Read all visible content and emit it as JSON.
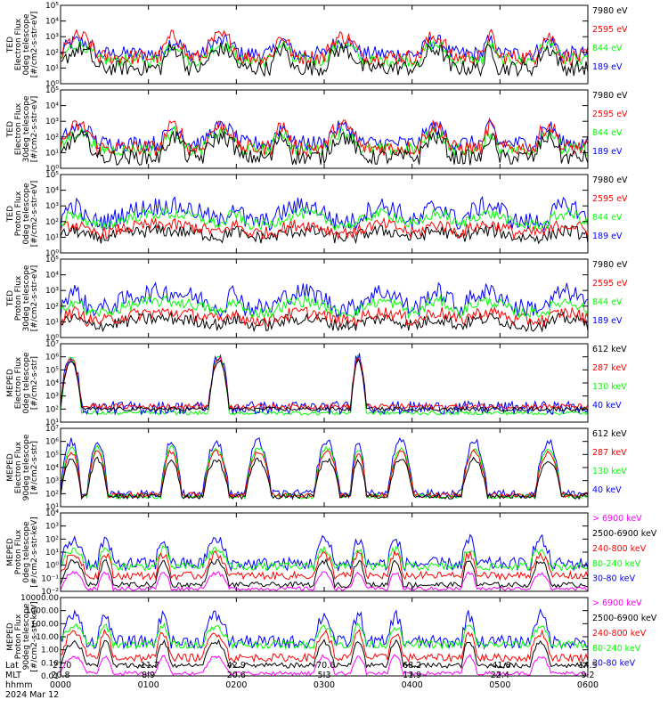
{
  "chart_data": {
    "type": "line",
    "date_label": "2024 Mar 12",
    "x_rows": {
      "labels": [
        "Lat",
        "MLT",
        "hhmm"
      ],
      "columns": [
        {
          "lat": "-21.0",
          "mlt": "20.8",
          "hhmm": "0000"
        },
        {
          "lat": "-11.7",
          "mlt": "8.9",
          "hhmm": "0100"
        },
        {
          "lat": "42.9",
          "mlt": "20.6",
          "hhmm": "0200"
        },
        {
          "lat": "-70.6",
          "mlt": "5.3",
          "hhmm": "0300"
        },
        {
          "lat": "68.2",
          "mlt": "11.9",
          "hhmm": "0400"
        },
        {
          "lat": "-41.8",
          "mlt": "22.4",
          "hhmm": "0500"
        },
        {
          "lat": "14.5",
          "mlt": "9.2",
          "hhmm": "0600"
        }
      ]
    },
    "colors": {
      "c0": "#0000ff",
      "c1": "#00ff00",
      "c2": "#ff0000",
      "c3": "#000000",
      "c4": "#ff00ff"
    },
    "panels": [
      {
        "ylabel": [
          "TED",
          "Electron Flux",
          "0deg telescope",
          "[#/cm2-s-str-eV]"
        ],
        "yscale": "log",
        "ymin": 0,
        "ymax": 5,
        "ticks": [
          {
            "t": "10⁰",
            "e": 0
          },
          {
            "t": "10¹",
            "e": 1
          },
          {
            "t": "10²",
            "e": 2
          },
          {
            "t": "10³",
            "e": 3
          },
          {
            "t": "10⁴",
            "e": 4
          },
          {
            "t": "10⁵",
            "e": 5
          }
        ],
        "legend": [
          {
            "text": "7980 eV",
            "color": "c3"
          },
          {
            "text": "2595 eV",
            "color": "c2"
          },
          {
            "text": "844 eV",
            "color": "c1"
          },
          {
            "text": "189 eV",
            "color": "c0"
          }
        ],
        "series": [
          {
            "color": "c0",
            "profile": "ted-e",
            "base": 1.9,
            "peak": 2.7,
            "noise": 0.5
          },
          {
            "color": "c1",
            "profile": "ted-e",
            "base": 1.5,
            "peak": 2.5,
            "noise": 0.4
          },
          {
            "color": "c2",
            "profile": "ted-e",
            "base": 1.7,
            "peak": 3.0,
            "noise": 0.5
          },
          {
            "color": "c3",
            "profile": "ted-e",
            "base": 1.0,
            "peak": 2.2,
            "noise": 0.5
          }
        ]
      },
      {
        "ylabel": [
          "TED",
          "Electron Flux",
          "30deg telescope",
          "[#/cm2-s-str-eV]"
        ],
        "yscale": "log",
        "ymin": 0,
        "ymax": 5,
        "ticks": [
          {
            "t": "10⁰",
            "e": 0
          },
          {
            "t": "10¹",
            "e": 1
          },
          {
            "t": "10²",
            "e": 2
          },
          {
            "t": "10³",
            "e": 3
          },
          {
            "t": "10⁴",
            "e": 4
          },
          {
            "t": "10⁵",
            "e": 5
          }
        ],
        "legend": [
          {
            "text": "7980 eV",
            "color": "c3"
          },
          {
            "text": "2595 eV",
            "color": "c2"
          },
          {
            "text": "844 eV",
            "color": "c1"
          },
          {
            "text": "189 eV",
            "color": "c0"
          }
        ],
        "series": [
          {
            "color": "c0",
            "profile": "ted-e",
            "base": 1.6,
            "peak": 2.6,
            "noise": 0.5
          },
          {
            "color": "c1",
            "profile": "ted-e",
            "base": 1.2,
            "peak": 2.3,
            "noise": 0.4
          },
          {
            "color": "c2",
            "profile": "ted-e",
            "base": 1.3,
            "peak": 2.7,
            "noise": 0.5
          },
          {
            "color": "c3",
            "profile": "ted-e",
            "base": 0.7,
            "peak": 2.0,
            "noise": 0.5
          }
        ]
      },
      {
        "ylabel": [
          "TED",
          "Proton Flux",
          "0deg telescope",
          "[#/cm2-s-str-eV]"
        ],
        "yscale": "log",
        "ymin": 0,
        "ymax": 5,
        "ticks": [
          {
            "t": "10⁰",
            "e": 0
          },
          {
            "t": "10¹",
            "e": 1
          },
          {
            "t": "10²",
            "e": 2
          },
          {
            "t": "10³",
            "e": 3
          },
          {
            "t": "10⁴",
            "e": 4
          },
          {
            "t": "10⁵",
            "e": 5
          }
        ],
        "legend": [
          {
            "text": "7980 eV",
            "color": "c3"
          },
          {
            "text": "2595 eV",
            "color": "c2"
          },
          {
            "text": "844 eV",
            "color": "c1"
          },
          {
            "text": "189 eV",
            "color": "c0"
          }
        ],
        "series": [
          {
            "color": "c3",
            "profile": "ted-p",
            "base": 1.0,
            "peak": 1.4,
            "noise": 0.4
          },
          {
            "color": "c2",
            "profile": "ted-p",
            "base": 1.3,
            "peak": 1.8,
            "noise": 0.4
          },
          {
            "color": "c0",
            "profile": "ted-p",
            "base": 2.0,
            "peak": 3.0,
            "noise": 0.6
          },
          {
            "color": "c1",
            "profile": "ted-p",
            "base": 1.8,
            "peak": 2.5,
            "noise": 0.35
          }
        ]
      },
      {
        "ylabel": [
          "TED",
          "Proton Flux",
          "30deg telescope",
          "[#/cm2-s-str-eV]"
        ],
        "yscale": "log",
        "ymin": 0,
        "ymax": 5,
        "ticks": [
          {
            "t": "10⁰",
            "e": 0
          },
          {
            "t": "10¹",
            "e": 1
          },
          {
            "t": "10²",
            "e": 2
          },
          {
            "t": "10³",
            "e": 3
          },
          {
            "t": "10⁴",
            "e": 4
          },
          {
            "t": "10⁵",
            "e": 5
          }
        ],
        "legend": [
          {
            "text": "7980 eV",
            "color": "c3"
          },
          {
            "text": "2595 eV",
            "color": "c2"
          },
          {
            "text": "844 eV",
            "color": "c1"
          },
          {
            "text": "189 eV",
            "color": "c0"
          }
        ],
        "series": [
          {
            "color": "c3",
            "profile": "ted-p",
            "base": 0.8,
            "peak": 1.2,
            "noise": 0.4
          },
          {
            "color": "c2",
            "profile": "ted-p",
            "base": 1.1,
            "peak": 1.6,
            "noise": 0.4
          },
          {
            "color": "c0",
            "profile": "ted-p",
            "base": 1.9,
            "peak": 2.9,
            "noise": 0.6
          },
          {
            "color": "c1",
            "profile": "ted-p",
            "base": 1.6,
            "peak": 2.3,
            "noise": 0.35
          }
        ]
      },
      {
        "ylabel": [
          "MEPED",
          "Electron Flux",
          "0deg telescope",
          "[#/cm2-s-str]"
        ],
        "yscale": "log",
        "ymin": 1,
        "ymax": 7,
        "ticks": [
          {
            "t": "10¹",
            "e": 1
          },
          {
            "t": "10²",
            "e": 2
          },
          {
            "t": "10³",
            "e": 3
          },
          {
            "t": "10⁴",
            "e": 4
          },
          {
            "t": "10⁵",
            "e": 5
          },
          {
            "t": "10⁶",
            "e": 6
          },
          {
            "t": "10⁷",
            "e": 7
          }
        ],
        "legend": [
          {
            "text": "612 keV",
            "color": "c3"
          },
          {
            "text": "287 keV",
            "color": "c2"
          },
          {
            "text": "130 keV",
            "color": "c1"
          },
          {
            "text": "40 keV",
            "color": "c0"
          }
        ],
        "series": [
          {
            "color": "c1",
            "profile": "mep-e0",
            "base": 1.7,
            "peak": 6.0,
            "noise": 0.15
          },
          {
            "color": "c0",
            "profile": "mep-e0",
            "base": 2.1,
            "peak": 6.1,
            "noise": 0.5
          },
          {
            "color": "c2",
            "profile": "mep-e0",
            "base": 2.2,
            "peak": 5.9,
            "noise": 0.2
          },
          {
            "color": "c3",
            "profile": "mep-e0",
            "base": 2.0,
            "peak": 5.7,
            "noise": 0.15
          }
        ]
      },
      {
        "ylabel": [
          "MEPED",
          "Electron Flux",
          "90deg telescope",
          "[#/cm2-s-str]"
        ],
        "yscale": "log",
        "ymin": 1,
        "ymax": 7,
        "ticks": [
          {
            "t": "10¹",
            "e": 1
          },
          {
            "t": "10²",
            "e": 2
          },
          {
            "t": "10³",
            "e": 3
          },
          {
            "t": "10⁴",
            "e": 4
          },
          {
            "t": "10⁵",
            "e": 5
          },
          {
            "t": "10⁶",
            "e": 6
          },
          {
            "t": "10⁷",
            "e": 7
          }
        ],
        "legend": [
          {
            "text": "612 keV",
            "color": "c3"
          },
          {
            "text": "287 keV",
            "color": "c2"
          },
          {
            "text": "130 keV",
            "color": "c1"
          },
          {
            "text": "40 keV",
            "color": "c0"
          }
        ],
        "series": [
          {
            "color": "c0",
            "profile": "mep-e90",
            "base": 2.0,
            "peak": 6.0,
            "noise": 0.3
          },
          {
            "color": "c1",
            "profile": "mep-e90",
            "base": 1.8,
            "peak": 5.5,
            "noise": 0.2
          },
          {
            "color": "c2",
            "profile": "mep-e90",
            "base": 1.9,
            "peak": 5.2,
            "noise": 0.2
          },
          {
            "color": "c3",
            "profile": "mep-e90",
            "base": 1.8,
            "peak": 4.6,
            "noise": 0.2
          }
        ]
      },
      {
        "ylabel": [
          "MEPED",
          "Proton Flux",
          "0deg telescope",
          "[#/cm2-s-str-keV]"
        ],
        "yscale": "log",
        "ymin": -2,
        "ymax": 4,
        "ticks": [
          {
            "t": "10⁻²",
            "e": -2
          },
          {
            "t": "10⁻¹",
            "e": -1
          },
          {
            "t": "10⁰",
            "e": 0
          },
          {
            "t": "10¹",
            "e": 1
          },
          {
            "t": "10²",
            "e": 2
          },
          {
            "t": "10³",
            "e": 3
          },
          {
            "t": "10⁴",
            "e": 4
          }
        ],
        "legend": [
          {
            "text": "> 6900 keV",
            "color": "c4"
          },
          {
            "text": "2500-6900 keV",
            "color": "c3"
          },
          {
            "text": "240-800 keV",
            "color": "c2"
          },
          {
            "text": "80-240 keV",
            "color": "c1"
          },
          {
            "text": "30-80 keV",
            "color": "c0"
          }
        ],
        "series": [
          {
            "color": "c0",
            "profile": "mep-p",
            "base": 0.1,
            "peak": 1.9,
            "noise": 0.5
          },
          {
            "color": "c1",
            "profile": "mep-p",
            "base": -0.1,
            "peak": 1.2,
            "noise": 0.3
          },
          {
            "color": "c2",
            "profile": "mep-p",
            "base": -0.8,
            "peak": 0.8,
            "noise": 0.3
          },
          {
            "color": "c3",
            "profile": "mep-p",
            "base": -1.5,
            "peak": 0.3,
            "noise": 0.2
          },
          {
            "color": "c4",
            "profile": "mep-p",
            "base": -1.8,
            "peak": -0.6,
            "noise": 0.15
          }
        ]
      },
      {
        "ylabel": [
          "MEPED",
          "Proton Flux",
          "90deg telescope",
          "[#/cm2-s-str-keV]"
        ],
        "yscale": "log",
        "ymin": -2,
        "ymax": 4,
        "ticks": [
          {
            "t": "0.01",
            "e": -2
          },
          {
            "t": "0.10",
            "e": -1
          },
          {
            "t": "1.00",
            "e": 0
          },
          {
            "t": "10.00",
            "e": 1
          },
          {
            "t": "100.00",
            "e": 2
          },
          {
            "t": "1000.00",
            "e": 3
          },
          {
            "t": "10000.00",
            "e": 4
          }
        ],
        "legend": [
          {
            "text": "> 6900 keV",
            "color": "c4"
          },
          {
            "text": "2500-6900 keV",
            "color": "c3"
          },
          {
            "text": "240-800 keV",
            "color": "c2"
          },
          {
            "text": "80-240 keV",
            "color": "c1"
          },
          {
            "text": "30-80 keV",
            "color": "c0"
          }
        ],
        "series": [
          {
            "color": "c0",
            "profile": "mep-p",
            "base": 0.6,
            "peak": 2.6,
            "noise": 0.5
          },
          {
            "color": "c1",
            "profile": "mep-p",
            "base": 0.4,
            "peak": 1.8,
            "noise": 0.3
          },
          {
            "color": "c2",
            "profile": "mep-p",
            "base": -0.6,
            "peak": 1.3,
            "noise": 0.3
          },
          {
            "color": "c3",
            "profile": "mep-p",
            "base": -1.2,
            "peak": 0.6,
            "noise": 0.2
          },
          {
            "color": "c4",
            "profile": "mep-p",
            "base": -1.8,
            "peak": -0.5,
            "noise": 0.15
          }
        ]
      }
    ]
  }
}
